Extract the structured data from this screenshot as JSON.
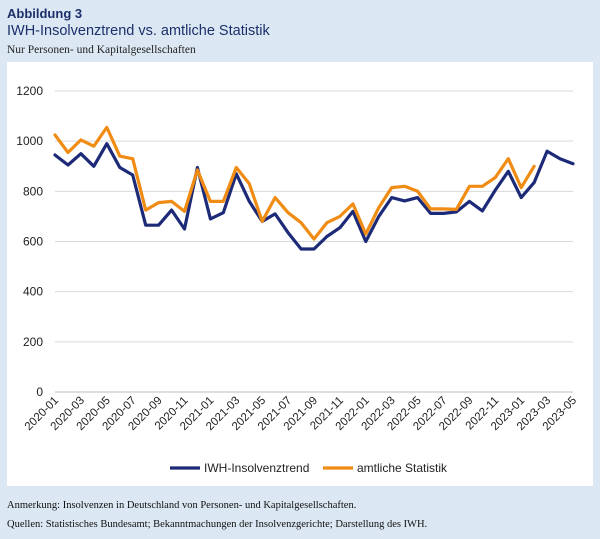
{
  "header": {
    "label": "Abbildung 3",
    "title": "IWH-Insolvenztrend vs. amtliche Statistik",
    "subtitle": "Nur Personen- und Kapitalgesellschaften"
  },
  "footer": {
    "note": "Anmerkung: Insolvenzen in Deutschland von Personen- und Kapitalgesellschaften.",
    "sources": "Quellen: Statistisches Bundesamt; Bekanntmachungen der Insolvenzgerichte; Darstellung des IWH."
  },
  "chart_data": {
    "type": "line",
    "title": "IWH-Insolvenztrend vs. amtliche Statistik",
    "xlabel": "",
    "ylabel": "",
    "ylim": [
      0,
      1200
    ],
    "yticks": [
      0,
      200,
      400,
      600,
      800,
      1000,
      1200
    ],
    "grid": "horizontal",
    "legend_position": "bottom",
    "x": [
      "2020-01",
      "2020-02",
      "2020-03",
      "2020-04",
      "2020-05",
      "2020-06",
      "2020-07",
      "2020-08",
      "2020-09",
      "2020-10",
      "2020-11",
      "2020-12",
      "2021-01",
      "2021-02",
      "2021-03",
      "2021-04",
      "2021-05",
      "2021-06",
      "2021-07",
      "2021-08",
      "2021-09",
      "2021-10",
      "2021-11",
      "2021-12",
      "2022-01",
      "2022-02",
      "2022-03",
      "2022-04",
      "2022-05",
      "2022-06",
      "2022-07",
      "2022-08",
      "2022-09",
      "2022-10",
      "2022-11",
      "2022-12",
      "2023-01",
      "2023-02",
      "2023-03",
      "2023-04",
      "2023-05"
    ],
    "xtick_labels": [
      "2020-01",
      "2020-03",
      "2020-05",
      "2020-07",
      "2020-09",
      "2020-11",
      "2021-01",
      "2021-03",
      "2021-05",
      "2021-07",
      "2021-09",
      "2021-11",
      "2022-01",
      "2022-03",
      "2022-05",
      "2022-07",
      "2022-09",
      "2022-11",
      "2023-01",
      "2023-03",
      "2023-05"
    ],
    "series": [
      {
        "name": "IWH-Insolvenztrend",
        "color": "#1c2a78",
        "values": [
          945,
          905,
          950,
          900,
          990,
          895,
          865,
          665,
          665,
          725,
          650,
          895,
          690,
          715,
          870,
          760,
          680,
          710,
          635,
          570,
          570,
          620,
          655,
          720,
          600,
          700,
          775,
          762,
          775,
          712,
          712,
          718,
          760,
          722,
          805,
          880,
          775,
          835,
          960,
          930,
          910
        ]
      },
      {
        "name": "amtliche Statistik",
        "color": "#f08c14",
        "values": [
          1025,
          955,
          1005,
          980,
          1055,
          940,
          930,
          725,
          755,
          760,
          720,
          885,
          760,
          760,
          895,
          830,
          680,
          775,
          715,
          675,
          610,
          675,
          700,
          750,
          630,
          735,
          815,
          820,
          800,
          730,
          730,
          728,
          820,
          820,
          855,
          930,
          815,
          900,
          null,
          null,
          null
        ]
      }
    ]
  }
}
